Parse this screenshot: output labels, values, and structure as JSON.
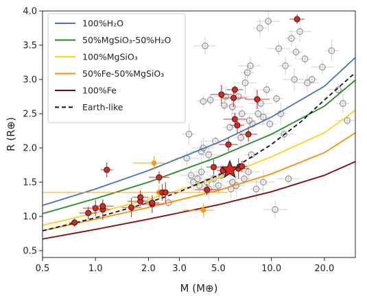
{
  "chart_data": {
    "type": "scatter",
    "xlabel": "M (M⊕)",
    "ylabel": "R (R⊕)",
    "x_scale": "log",
    "xlim": [
      0.5,
      30
    ],
    "ylim": [
      0.4,
      4.0
    ],
    "x_ticks": [
      0.5,
      1.0,
      2.0,
      3.0,
      5.0,
      10.0,
      20.0
    ],
    "x_tick_labels": [
      "0.5",
      "1.0",
      "2.0",
      "3.0",
      "5.0",
      "10.0",
      "20.0"
    ],
    "y_ticks": [
      0.5,
      1.0,
      1.5,
      2.0,
      2.5,
      3.0,
      3.5,
      4.0
    ],
    "y_tick_labels": [
      "0.5",
      "1.0",
      "1.5",
      "2.0",
      "2.5",
      "3.0",
      "3.5",
      "4.0"
    ],
    "legend_position": "top-left",
    "grid": false,
    "curves": [
      {
        "name": "100%H₂O",
        "color": "#4472c4",
        "style": "solid",
        "x": [
          0.5,
          1,
          2,
          5,
          10,
          20,
          30
        ],
        "y": [
          1.16,
          1.4,
          1.67,
          2.08,
          2.45,
          2.9,
          3.32
        ]
      },
      {
        "name": "50%MgSiO₃-50%H₂O",
        "color": "#228b22",
        "style": "solid",
        "x": [
          0.5,
          1,
          2,
          5,
          10,
          20,
          30
        ],
        "y": [
          1.04,
          1.26,
          1.5,
          1.87,
          2.2,
          2.61,
          2.99
        ]
      },
      {
        "name": "100%MgSiO₃",
        "color": "#ffd21f",
        "style": "solid",
        "x": [
          0.5,
          1,
          2,
          5,
          10,
          20,
          30
        ],
        "y": [
          0.87,
          1.05,
          1.25,
          1.56,
          1.87,
          2.22,
          2.55
        ]
      },
      {
        "name": "50%Fe-50%MgSiO₃",
        "color": "#ff8c00",
        "style": "solid",
        "x": [
          0.5,
          1,
          2,
          5,
          10,
          20,
          30
        ],
        "y": [
          0.79,
          0.96,
          1.13,
          1.38,
          1.62,
          1.93,
          2.22
        ]
      },
      {
        "name": "100%Fe",
        "color": "#8b0000",
        "style": "solid",
        "x": [
          0.5,
          1,
          2,
          5,
          10,
          20,
          30
        ],
        "y": [
          0.67,
          0.81,
          0.96,
          1.17,
          1.36,
          1.6,
          1.8
        ]
      },
      {
        "name": "Earth-like",
        "color": "#111111",
        "style": "dashed",
        "x": [
          0.5,
          1,
          2,
          3,
          5,
          7,
          10,
          15,
          20,
          25,
          30
        ],
        "y": [
          0.79,
          0.98,
          1.2,
          1.36,
          1.6,
          1.8,
          2.05,
          2.4,
          2.7,
          2.92,
          3.1
        ]
      }
    ],
    "series": [
      {
        "name": "highlighted planets",
        "marker": "filled-circle",
        "color": "#e0251c",
        "points": [
          {
            "x": 0.76,
            "y": 0.91
          },
          {
            "x": 0.91,
            "y": 1.05
          },
          {
            "x": 1.0,
            "y": 1.12
          },
          {
            "x": 1.1,
            "y": 1.1
          },
          {
            "x": 1.1,
            "y": 1.15
          },
          {
            "x": 1.16,
            "y": 1.68
          },
          {
            "x": 1.6,
            "y": 1.13
          },
          {
            "x": 1.8,
            "y": 1.22
          },
          {
            "x": 1.8,
            "y": 1.28
          },
          {
            "x": 2.1,
            "y": 1.18
          },
          {
            "x": 2.1,
            "y": 1.2
          },
          {
            "x": 2.3,
            "y": 1.57
          },
          {
            "x": 2.4,
            "y": 1.35
          },
          {
            "x": 2.5,
            "y": 1.35
          },
          {
            "x": 4.3,
            "y": 1.39
          },
          {
            "x": 4.7,
            "y": 1.72
          },
          {
            "x": 5.2,
            "y": 2.78
          },
          {
            "x": 5.3,
            "y": 1.67
          },
          {
            "x": 5.7,
            "y": 2.05
          },
          {
            "x": 6.1,
            "y": 2.73
          },
          {
            "x": 6.2,
            "y": 2.85
          },
          {
            "x": 6.2,
            "y": 2.42
          },
          {
            "x": 6.4,
            "y": 2.33
          },
          {
            "x": 6.5,
            "y": 1.7
          },
          {
            "x": 6.8,
            "y": 1.73
          },
          {
            "x": 7.4,
            "y": 2.2
          },
          {
            "x": 8.3,
            "y": 2.71
          },
          {
            "x": 14.0,
            "y": 3.88
          }
        ]
      },
      {
        "name": "orange planets",
        "marker": "filled-circle",
        "color": "#ff9a1a",
        "points": [
          {
            "x": 2.15,
            "y": 1.78
          },
          {
            "x": 2.3,
            "y": 1.35
          },
          {
            "x": 4.1,
            "y": 1.09
          }
        ]
      },
      {
        "name": "known planets",
        "marker": "open-circle",
        "color": "#888888",
        "points": [
          {
            "x": 2.6,
            "y": 1.2
          },
          {
            "x": 3.3,
            "y": 1.85
          },
          {
            "x": 3.4,
            "y": 2.2
          },
          {
            "x": 3.5,
            "y": 1.6
          },
          {
            "x": 3.6,
            "y": 1.5
          },
          {
            "x": 3.8,
            "y": 1.55
          },
          {
            "x": 3.9,
            "y": 1.45
          },
          {
            "x": 4.0,
            "y": 1.95
          },
          {
            "x": 4.0,
            "y": 1.65
          },
          {
            "x": 4.1,
            "y": 2.0
          },
          {
            "x": 4.1,
            "y": 2.68
          },
          {
            "x": 4.2,
            "y": 3.49
          },
          {
            "x": 4.3,
            "y": 1.5
          },
          {
            "x": 4.4,
            "y": 1.9
          },
          {
            "x": 4.4,
            "y": 1.4
          },
          {
            "x": 4.5,
            "y": 2.7
          },
          {
            "x": 4.7,
            "y": 1.55
          },
          {
            "x": 4.8,
            "y": 2.1
          },
          {
            "x": 5.0,
            "y": 1.45
          },
          {
            "x": 5.2,
            "y": 1.6
          },
          {
            "x": 5.4,
            "y": 2.62
          },
          {
            "x": 5.5,
            "y": 2.75
          },
          {
            "x": 5.8,
            "y": 2.3
          },
          {
            "x": 5.9,
            "y": 1.4
          },
          {
            "x": 6.0,
            "y": 1.5
          },
          {
            "x": 6.0,
            "y": 2.6
          },
          {
            "x": 6.3,
            "y": 1.45
          },
          {
            "x": 6.5,
            "y": 2.75
          },
          {
            "x": 6.7,
            "y": 2.15
          },
          {
            "x": 6.8,
            "y": 2.5
          },
          {
            "x": 7.0,
            "y": 1.55
          },
          {
            "x": 7.1,
            "y": 2.95
          },
          {
            "x": 7.3,
            "y": 3.1
          },
          {
            "x": 7.4,
            "y": 1.65
          },
          {
            "x": 7.5,
            "y": 2.4
          },
          {
            "x": 7.6,
            "y": 3.2
          },
          {
            "x": 7.7,
            "y": 1.9
          },
          {
            "x": 7.8,
            "y": 2.35
          },
          {
            "x": 8.2,
            "y": 1.4
          },
          {
            "x": 8.4,
            "y": 2.5
          },
          {
            "x": 8.6,
            "y": 3.75
          },
          {
            "x": 8.7,
            "y": 2.65
          },
          {
            "x": 9.0,
            "y": 2.45
          },
          {
            "x": 9.0,
            "y": 1.5
          },
          {
            "x": 9.4,
            "y": 2.85
          },
          {
            "x": 9.6,
            "y": 3.85
          },
          {
            "x": 9.8,
            "y": 2.35
          },
          {
            "x": 10.5,
            "y": 1.1
          },
          {
            "x": 10.7,
            "y": 2.72
          },
          {
            "x": 11.0,
            "y": 3.45
          },
          {
            "x": 11.3,
            "y": 2.5
          },
          {
            "x": 11.8,
            "y": 2.2
          },
          {
            "x": 12.0,
            "y": 3.2
          },
          {
            "x": 12.5,
            "y": 1.55
          },
          {
            "x": 13.0,
            "y": 3.6
          },
          {
            "x": 13.5,
            "y": 3.0
          },
          {
            "x": 13.8,
            "y": 3.4
          },
          {
            "x": 14.5,
            "y": 3.7
          },
          {
            "x": 15.5,
            "y": 3.3
          },
          {
            "x": 16.0,
            "y": 2.95
          },
          {
            "x": 17.0,
            "y": 3.0
          },
          {
            "x": 19.5,
            "y": 3.18
          },
          {
            "x": 22.0,
            "y": 3.42
          },
          {
            "x": 24.0,
            "y": 2.85
          },
          {
            "x": 25.5,
            "y": 2.65
          },
          {
            "x": 27.0,
            "y": 2.4
          }
        ]
      }
    ],
    "star": {
      "x": 5.8,
      "y": 1.68,
      "color": "#e0251c"
    }
  }
}
